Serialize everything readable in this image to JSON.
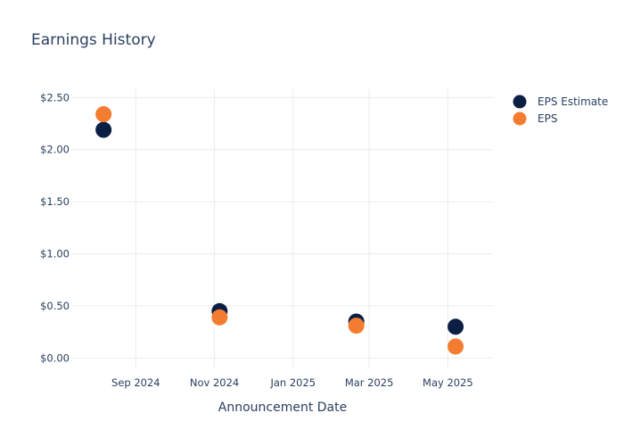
{
  "chart_data": {
    "type": "scatter",
    "title": "Earnings History",
    "xlabel": "Announcement Date",
    "ylabel": "",
    "x_ticks": [
      {
        "date": "2024-09-01",
        "label": "Sep 2024"
      },
      {
        "date": "2024-11-01",
        "label": "Nov 2024"
      },
      {
        "date": "2025-01-01",
        "label": "Jan 2025"
      },
      {
        "date": "2025-03-01",
        "label": "Mar 2025"
      },
      {
        "date": "2025-05-01",
        "label": "May 2025"
      }
    ],
    "y_ticks": [
      {
        "value": 0,
        "label": "$0.00"
      },
      {
        "value": 0.5,
        "label": "$0.50"
      },
      {
        "value": 1.0,
        "label": "$1.00"
      },
      {
        "value": 1.5,
        "label": "$1.50"
      },
      {
        "value": 2.0,
        "label": "$2.00"
      },
      {
        "value": 2.5,
        "label": "$2.50"
      }
    ],
    "xlim": [
      "2024-07-13",
      "2025-06-05"
    ],
    "ylim": [
      -0.1,
      2.58
    ],
    "grid": true,
    "legend_position": "top-right",
    "series": [
      {
        "name": "EPS Estimate",
        "color": "#0b1f44",
        "points": [
          {
            "x": "2024-08-07",
            "y": 2.19
          },
          {
            "x": "2024-11-05",
            "y": 0.45
          },
          {
            "x": "2025-02-19",
            "y": 0.35
          },
          {
            "x": "2025-05-07",
            "y": 0.3
          }
        ]
      },
      {
        "name": "EPS",
        "color": "#f47c30",
        "points": [
          {
            "x": "2024-08-07",
            "y": 2.34
          },
          {
            "x": "2024-11-05",
            "y": 0.39
          },
          {
            "x": "2025-02-19",
            "y": 0.31
          },
          {
            "x": "2025-05-07",
            "y": 0.11
          }
        ]
      }
    ]
  }
}
